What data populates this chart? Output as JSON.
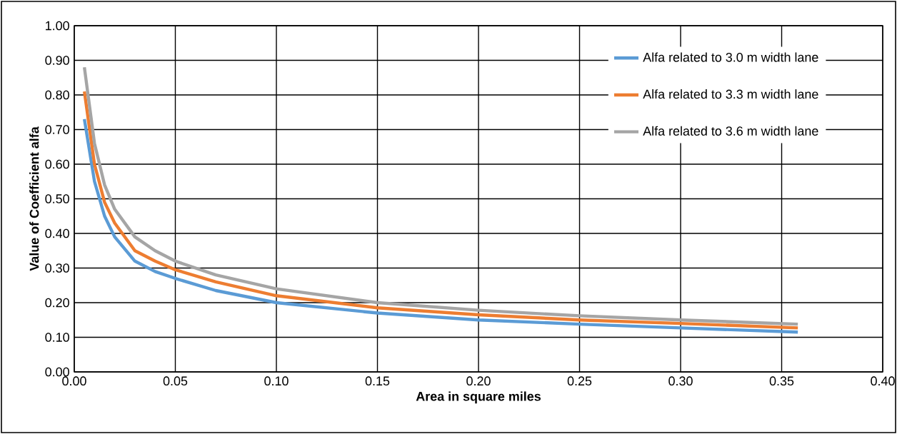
{
  "chart_data": {
    "type": "line",
    "xlabel": "Area in square miles",
    "ylabel": "Value of Coefficient alfa",
    "x": [
      0.005,
      0.01,
      0.015,
      0.02,
      0.03,
      0.04,
      0.05,
      0.07,
      0.1,
      0.15,
      0.2,
      0.25,
      0.3,
      0.358
    ],
    "series": [
      {
        "name": "Alfa related to 3.0 m width lane",
        "color": "#5b9bd5",
        "values": [
          0.73,
          0.55,
          0.45,
          0.39,
          0.32,
          0.29,
          0.27,
          0.235,
          0.2,
          0.17,
          0.15,
          0.138,
          0.127,
          0.115
        ]
      },
      {
        "name": "Alfa related to 3.3 m width lane",
        "color": "#ed7d31",
        "values": [
          0.81,
          0.6,
          0.49,
          0.43,
          0.35,
          0.32,
          0.295,
          0.26,
          0.22,
          0.185,
          0.165,
          0.15,
          0.14,
          0.127
        ]
      },
      {
        "name": "Alfa related to 3.6 m width lane",
        "color": "#a5a5a5",
        "values": [
          0.88,
          0.66,
          0.54,
          0.47,
          0.39,
          0.35,
          0.32,
          0.28,
          0.24,
          0.2,
          0.178,
          0.162,
          0.15,
          0.138
        ]
      }
    ],
    "xlim": [
      0,
      0.4
    ],
    "ylim": [
      0,
      1
    ],
    "xticks": [
      {
        "value": 0,
        "label": "0.00"
      },
      {
        "value": 0.05,
        "label": "0.05"
      },
      {
        "value": 0.1,
        "label": "0.10"
      },
      {
        "value": 0.15,
        "label": "0.15"
      },
      {
        "value": 0.2,
        "label": "0.20"
      },
      {
        "value": 0.25,
        "label": "0.25"
      },
      {
        "value": 0.3,
        "label": "0.30"
      },
      {
        "value": 0.35,
        "label": "0.35"
      },
      {
        "value": 0.4,
        "label": "0.40"
      }
    ],
    "yticks": [
      {
        "value": 0,
        "label": "0.00"
      },
      {
        "value": 0.1,
        "label": "0.10"
      },
      {
        "value": 0.2,
        "label": "0.20"
      },
      {
        "value": 0.3,
        "label": "0.30"
      },
      {
        "value": 0.4,
        "label": "0.40"
      },
      {
        "value": 0.5,
        "label": "0.50"
      },
      {
        "value": 0.6,
        "label": "0.60"
      },
      {
        "value": 0.7,
        "label": "0.70"
      },
      {
        "value": 0.8,
        "label": "0.80"
      },
      {
        "value": 0.9,
        "label": "0.90"
      },
      {
        "value": 1,
        "label": "1.00"
      }
    ],
    "grid": true,
    "legend": "top right",
    "marker": "none",
    "line_style": "solid"
  }
}
